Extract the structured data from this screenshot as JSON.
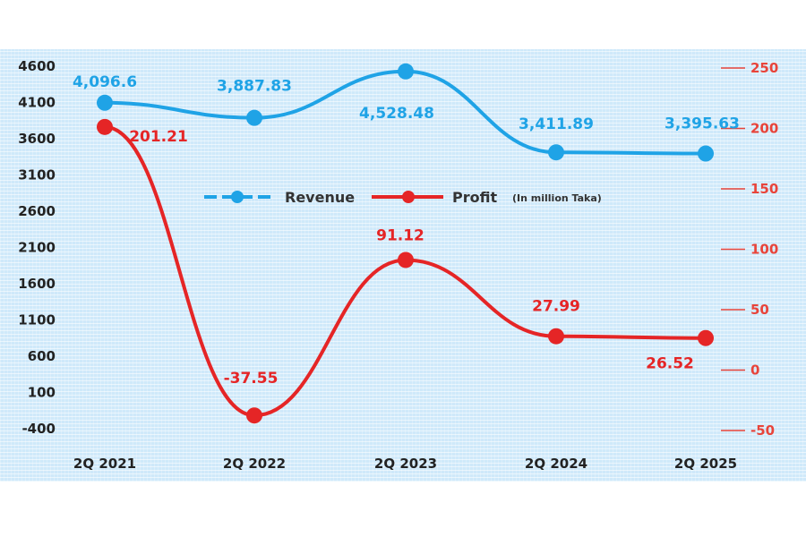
{
  "chart_data": {
    "type": "line",
    "categories": [
      "2Q 2021",
      "2Q 2022",
      "2Q 2023",
      "2Q 2024",
      "2Q 2025"
    ],
    "series": [
      {
        "name": "Revenue",
        "axis": "left",
        "color": "#1fa3e6",
        "values": [
          4096.6,
          3887.83,
          4528.48,
          3411.89,
          3395.63
        ],
        "labels": [
          "4,096.6",
          "3,887.83",
          "4,528.48",
          "3,411.89",
          "3,395.63"
        ]
      },
      {
        "name": "Profit",
        "axis": "right",
        "color": "#e52526",
        "values": [
          201.21,
          -37.55,
          91.12,
          27.99,
          26.52
        ],
        "labels": [
          "201.21",
          "-37.55",
          "91.12",
          "27.99",
          "26.52"
        ]
      }
    ],
    "left_axis": {
      "ylim": [
        -400,
        4600
      ],
      "ticks": [
        "4600",
        "4100",
        "3600",
        "3100",
        "2600",
        "2100",
        "1600",
        "1100",
        "600",
        "100",
        "-400"
      ]
    },
    "right_axis": {
      "ylim": [
        -50,
        250
      ],
      "ticks": [
        "250",
        "200",
        "150",
        "100",
        "50",
        "0",
        "-50"
      ],
      "color": "#e8443a"
    },
    "legend": {
      "placement": "top-center",
      "revenue_label": "Revenue",
      "profit_label": "Profit",
      "note": "(In million Taka)"
    },
    "background_color": "#cfe9fa"
  }
}
